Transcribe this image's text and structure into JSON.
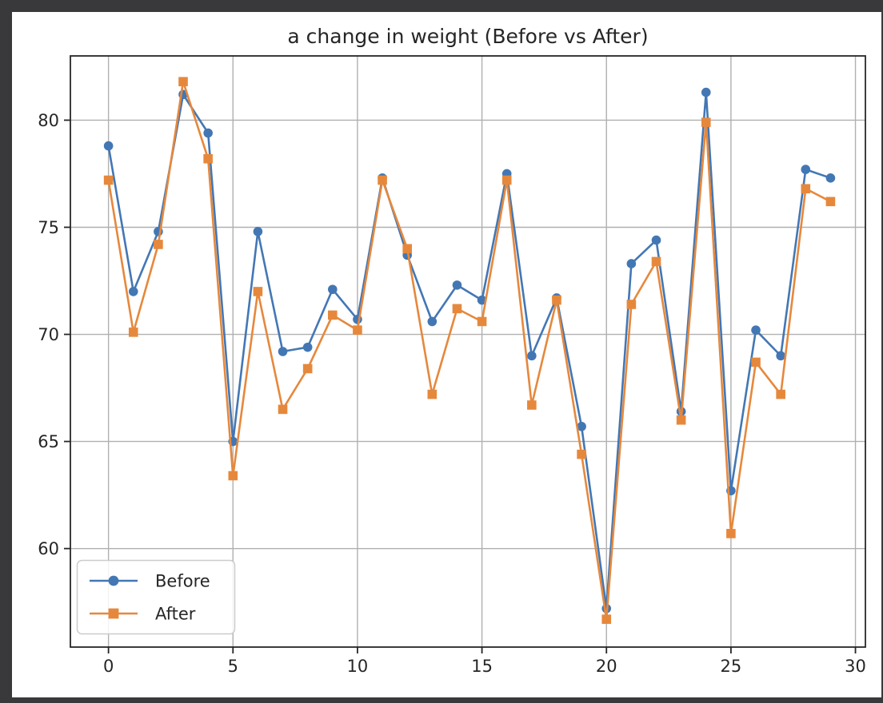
{
  "window": {
    "background_color": "#39393b",
    "figure_background_color": "#ffffff"
  },
  "chart_data": {
    "type": "line",
    "title": "a change in weight (Before vs After)",
    "xlabel": "",
    "ylabel": "",
    "grid": true,
    "legend": {
      "location": "lower left"
    },
    "xlim": [
      -1.53,
      30.4
    ],
    "ylim": [
      55.4,
      83.0
    ],
    "xticks": [
      0,
      5,
      10,
      15,
      20,
      25,
      30
    ],
    "yticks": [
      60,
      65,
      70,
      75,
      80
    ],
    "axis_color": "#262626",
    "grid_color": "#b0b0b0",
    "text_color": "#262626",
    "x": [
      0,
      1,
      2,
      3,
      4,
      5,
      6,
      7,
      8,
      9,
      10,
      11,
      12,
      13,
      14,
      15,
      16,
      17,
      18,
      19,
      20,
      21,
      22,
      23,
      24,
      25,
      26,
      27,
      28,
      29
    ],
    "series": [
      {
        "name": "Before",
        "color": "#4377b4",
        "marker": "circle",
        "values": [
          78.8,
          72.0,
          74.8,
          81.2,
          79.4,
          65.0,
          74.8,
          69.2,
          69.4,
          72.1,
          70.7,
          77.3,
          73.7,
          70.6,
          72.3,
          71.6,
          77.5,
          69.0,
          71.7,
          65.7,
          57.2,
          73.3,
          74.4,
          66.4,
          81.3,
          62.7,
          70.2,
          69.0,
          77.7,
          77.3
        ]
      },
      {
        "name": "After",
        "color": "#e6883c",
        "marker": "square",
        "values": [
          77.2,
          70.1,
          74.2,
          81.8,
          78.2,
          63.4,
          72.0,
          66.5,
          68.4,
          70.9,
          70.2,
          77.2,
          74.0,
          67.2,
          71.2,
          70.6,
          77.2,
          66.7,
          71.6,
          64.4,
          56.7,
          71.4,
          73.4,
          66.0,
          79.9,
          60.7,
          68.7,
          67.2,
          76.8,
          76.2
        ]
      }
    ]
  }
}
